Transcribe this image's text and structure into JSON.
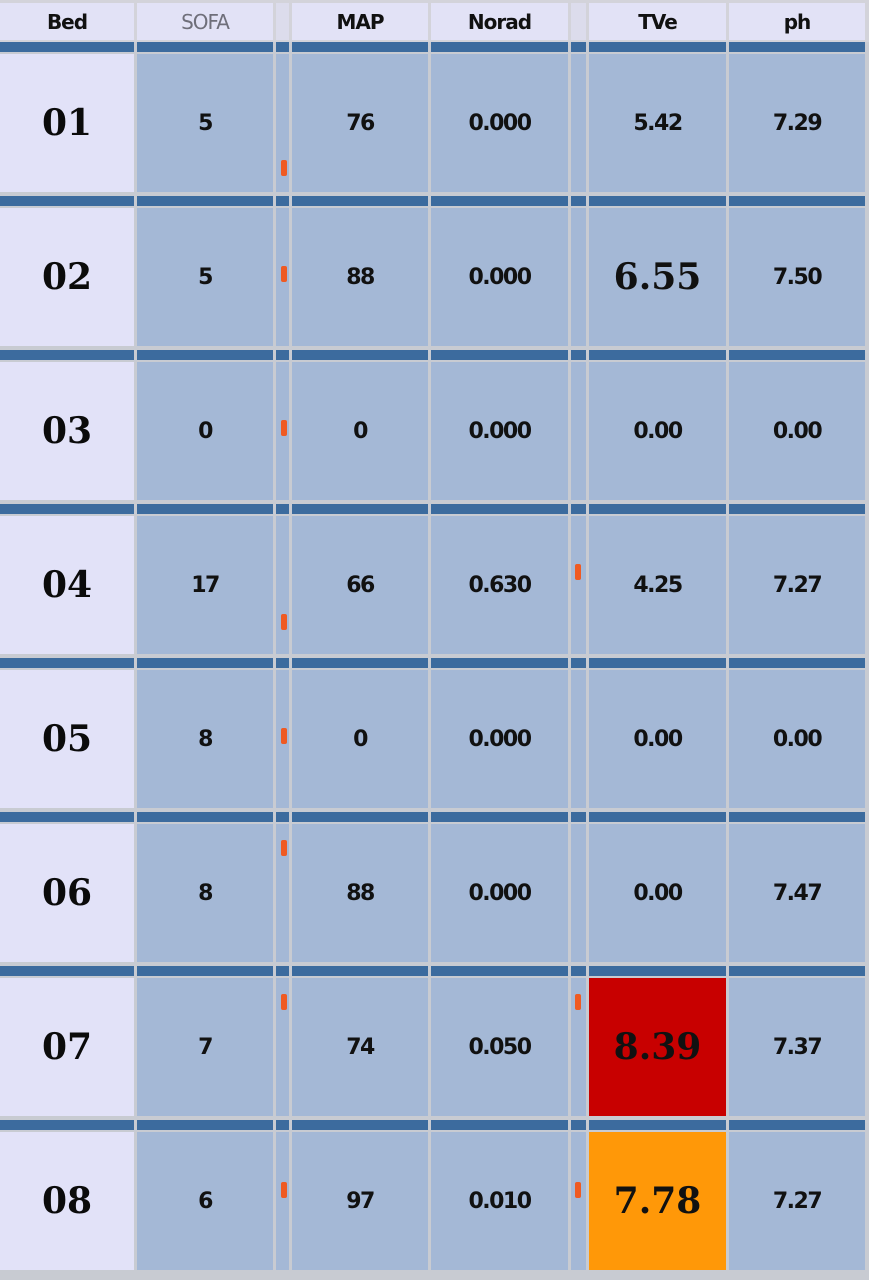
{
  "headers": [
    "Bed",
    "SOFA",
    "MAP",
    "Norad",
    "TVe",
    "ph"
  ],
  "colors": {
    "header_bg": "#e2e2f6",
    "cell_bg": "#a4b8d6",
    "bed_bg": "#e2e2f8",
    "row_strip": "#3c6b9e",
    "marker": "#ef5a22",
    "alert_red": "#c80000",
    "alert_orange": "#ff9808"
  },
  "rows": [
    {
      "bed": "01",
      "sofa": "5",
      "map": "76",
      "norad": "0.000",
      "tve": "5.42",
      "ph": "7.29",
      "tve_alert": ""
    },
    {
      "bed": "02",
      "sofa": "5",
      "map": "88",
      "norad": "0.000",
      "tve": "6.55",
      "ph": "7.50",
      "tve_alert": "large"
    },
    {
      "bed": "03",
      "sofa": "0",
      "map": "0",
      "norad": "0.000",
      "tve": "0.00",
      "ph": "0.00",
      "tve_alert": ""
    },
    {
      "bed": "04",
      "sofa": "17",
      "map": "66",
      "norad": "0.630",
      "tve": "4.25",
      "ph": "7.27",
      "tve_alert": ""
    },
    {
      "bed": "05",
      "sofa": "8",
      "map": "0",
      "norad": "0.000",
      "tve": "0.00",
      "ph": "0.00",
      "tve_alert": ""
    },
    {
      "bed": "06",
      "sofa": "8",
      "map": "88",
      "norad": "0.000",
      "tve": "0.00",
      "ph": "7.47",
      "tve_alert": ""
    },
    {
      "bed": "07",
      "sofa": "7",
      "map": "74",
      "norad": "0.050",
      "tve": "8.39",
      "ph": "7.37",
      "tve_alert": "red"
    },
    {
      "bed": "08",
      "sofa": "6",
      "map": "97",
      "norad": "0.010",
      "tve": "7.78",
      "ph": "7.27",
      "tve_alert": "orange"
    }
  ]
}
